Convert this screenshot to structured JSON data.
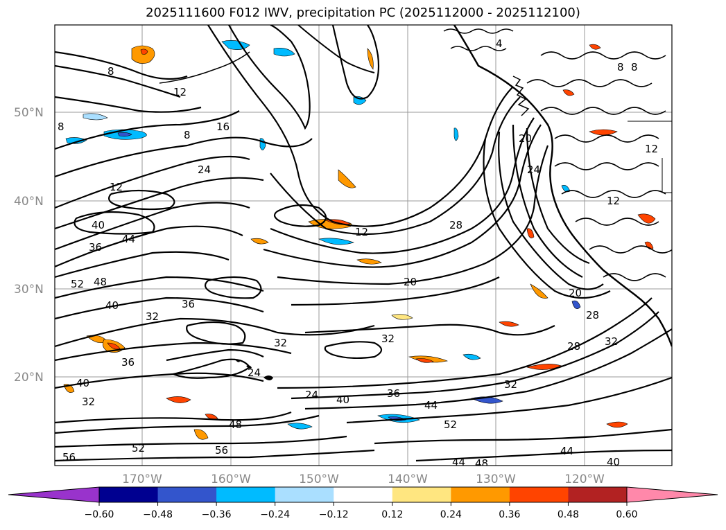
{
  "title": "2025111600 F012 IWV, precipitation PC (2025112000 - 2025112100)",
  "lat_labels": [
    "50°N",
    "40°N",
    "30°N",
    "20°N"
  ],
  "lon_labels": [
    "170°W",
    "160°W",
    "150°W",
    "140°W",
    "130°W",
    "120°W"
  ],
  "colorbar": {
    "tick_labels": [
      "−0.60",
      "−0.48",
      "−0.36",
      "−0.24",
      "−0.12",
      "0.12",
      "0.24",
      "0.36",
      "0.48",
      "0.60"
    ],
    "colors": [
      "#9933cc",
      "#000090",
      "#3355cc",
      "#00bbff",
      "#aadfff",
      "#ffffff",
      "#ffe680",
      "#ff9900",
      "#ff4400",
      "#b22222",
      "#ff88aa"
    ]
  },
  "contour_labels": [
    {
      "text": "8"
    },
    {
      "text": "12"
    },
    {
      "text": "8"
    },
    {
      "text": "16"
    },
    {
      "text": "8"
    },
    {
      "text": "24"
    },
    {
      "text": "12"
    },
    {
      "text": "40"
    },
    {
      "text": "36"
    },
    {
      "text": "44"
    },
    {
      "text": "52"
    },
    {
      "text": "48"
    },
    {
      "text": "40"
    },
    {
      "text": "36"
    },
    {
      "text": "32"
    },
    {
      "text": "36"
    },
    {
      "text": "40"
    },
    {
      "text": "32"
    },
    {
      "text": "32"
    },
    {
      "text": "48"
    },
    {
      "text": "52"
    },
    {
      "text": "56"
    },
    {
      "text": "56"
    },
    {
      "text": "24"
    },
    {
      "text": "40"
    },
    {
      "text": "36"
    },
    {
      "text": "44"
    },
    {
      "text": "32"
    },
    {
      "text": "20"
    },
    {
      "text": "12"
    },
    {
      "text": "28"
    },
    {
      "text": "20"
    },
    {
      "text": "24"
    },
    {
      "text": "20"
    },
    {
      "text": "28"
    },
    {
      "text": "28"
    },
    {
      "text": "32"
    },
    {
      "text": "32"
    },
    {
      "text": "44"
    },
    {
      "text": "40"
    },
    {
      "text": "44"
    },
    {
      "text": "48"
    },
    {
      "text": "52"
    },
    {
      "text": "12"
    },
    {
      "text": "12"
    },
    {
      "text": "8"
    },
    {
      "text": "4"
    },
    {
      "text": "8"
    },
    {
      "text": "24"
    }
  ]
}
